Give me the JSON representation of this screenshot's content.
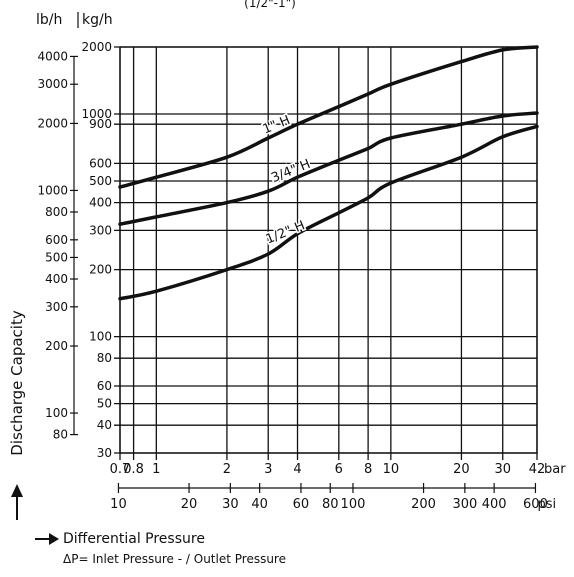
{
  "chart_data": {
    "type": "line",
    "subtitle_fragment": "(1/2\"-1\")",
    "ylabel": "Discharge Capacity",
    "y_units": [
      "lb/h",
      "kg/h"
    ],
    "x_units": [
      "bar",
      "psi"
    ],
    "xlim_bar": [
      0.7,
      42
    ],
    "ylim_kgh": [
      30,
      2000
    ],
    "x_scale": "log",
    "y_scale": "log",
    "grid": true,
    "xticks_bar": [
      {
        "value": 0.7,
        "label": "0.7"
      },
      {
        "value": 0.8,
        "label": "0.8"
      },
      {
        "value": 1,
        "label": "1"
      },
      {
        "value": 2,
        "label": "2"
      },
      {
        "value": 3,
        "label": "3"
      },
      {
        "value": 4,
        "label": "4"
      },
      {
        "value": 6,
        "label": "6"
      },
      {
        "value": 8,
        "label": "8"
      },
      {
        "value": 10,
        "label": "10"
      },
      {
        "value": 20,
        "label": "20"
      },
      {
        "value": 30,
        "label": "30"
      },
      {
        "value": 42,
        "label": "42"
      }
    ],
    "xticks_psi": [
      {
        "value": 10,
        "label": "10"
      },
      {
        "value": 20,
        "label": "20"
      },
      {
        "value": 30,
        "label": "30"
      },
      {
        "value": 40,
        "label": "40"
      },
      {
        "value": 60,
        "label": "60"
      },
      {
        "value": 80,
        "label": "80"
      },
      {
        "value": 100,
        "label": "100"
      },
      {
        "value": 200,
        "label": "200"
      },
      {
        "value": 300,
        "label": "300"
      },
      {
        "value": 400,
        "label": "400"
      },
      {
        "value": 600,
        "label": "600"
      }
    ],
    "yticks_kgh": [
      {
        "value": 30,
        "label": "30"
      },
      {
        "value": 40,
        "label": "40"
      },
      {
        "value": 50,
        "label": "50"
      },
      {
        "value": 60,
        "label": "60"
      },
      {
        "value": 80,
        "label": "80"
      },
      {
        "value": 100,
        "label": "100"
      },
      {
        "value": 200,
        "label": "200"
      },
      {
        "value": 300,
        "label": "300"
      },
      {
        "value": 400,
        "label": "400"
      },
      {
        "value": 500,
        "label": "500"
      },
      {
        "value": 600,
        "label": "600"
      },
      {
        "value": 900,
        "label": "900"
      },
      {
        "value": 1000,
        "label": "1000"
      },
      {
        "value": 2000,
        "label": "2000"
      }
    ],
    "yticks_lbh": [
      {
        "value": 80,
        "label": "80"
      },
      {
        "value": 100,
        "label": "100"
      },
      {
        "value": 200,
        "label": "200"
      },
      {
        "value": 300,
        "label": "300"
      },
      {
        "value": 400,
        "label": "400"
      },
      {
        "value": 500,
        "label": "500"
      },
      {
        "value": 600,
        "label": "600"
      },
      {
        "value": 800,
        "label": "800"
      },
      {
        "value": 1000,
        "label": "1000"
      },
      {
        "value": 2000,
        "label": "2000"
      },
      {
        "value": 3000,
        "label": "3000"
      },
      {
        "value": 4000,
        "label": "4000"
      }
    ],
    "series": [
      {
        "name": "1\" H",
        "x": [
          0.7,
          1,
          2,
          3,
          4,
          6,
          8,
          10,
          20,
          30,
          42
        ],
        "y": [
          470,
          520,
          640,
          780,
          900,
          1080,
          1230,
          1360,
          1720,
          1940,
          2000
        ]
      },
      {
        "name": "3/4\" H",
        "x": [
          0.7,
          1,
          2,
          3,
          4,
          6,
          8,
          10,
          20,
          30,
          42
        ],
        "y": [
          320,
          345,
          400,
          450,
          520,
          620,
          700,
          780,
          900,
          980,
          1010
        ]
      },
      {
        "name": "1/2\" H",
        "x": [
          0.7,
          1,
          2,
          3,
          4,
          6,
          8,
          10,
          20,
          30,
          42
        ],
        "y": [
          148,
          160,
          200,
          235,
          290,
          360,
          420,
          490,
          640,
          790,
          880
        ]
      }
    ]
  },
  "footer": {
    "label": "Differential Pressure",
    "formula": "ΔP= Inlet Pressure - / Outlet Pressure"
  }
}
